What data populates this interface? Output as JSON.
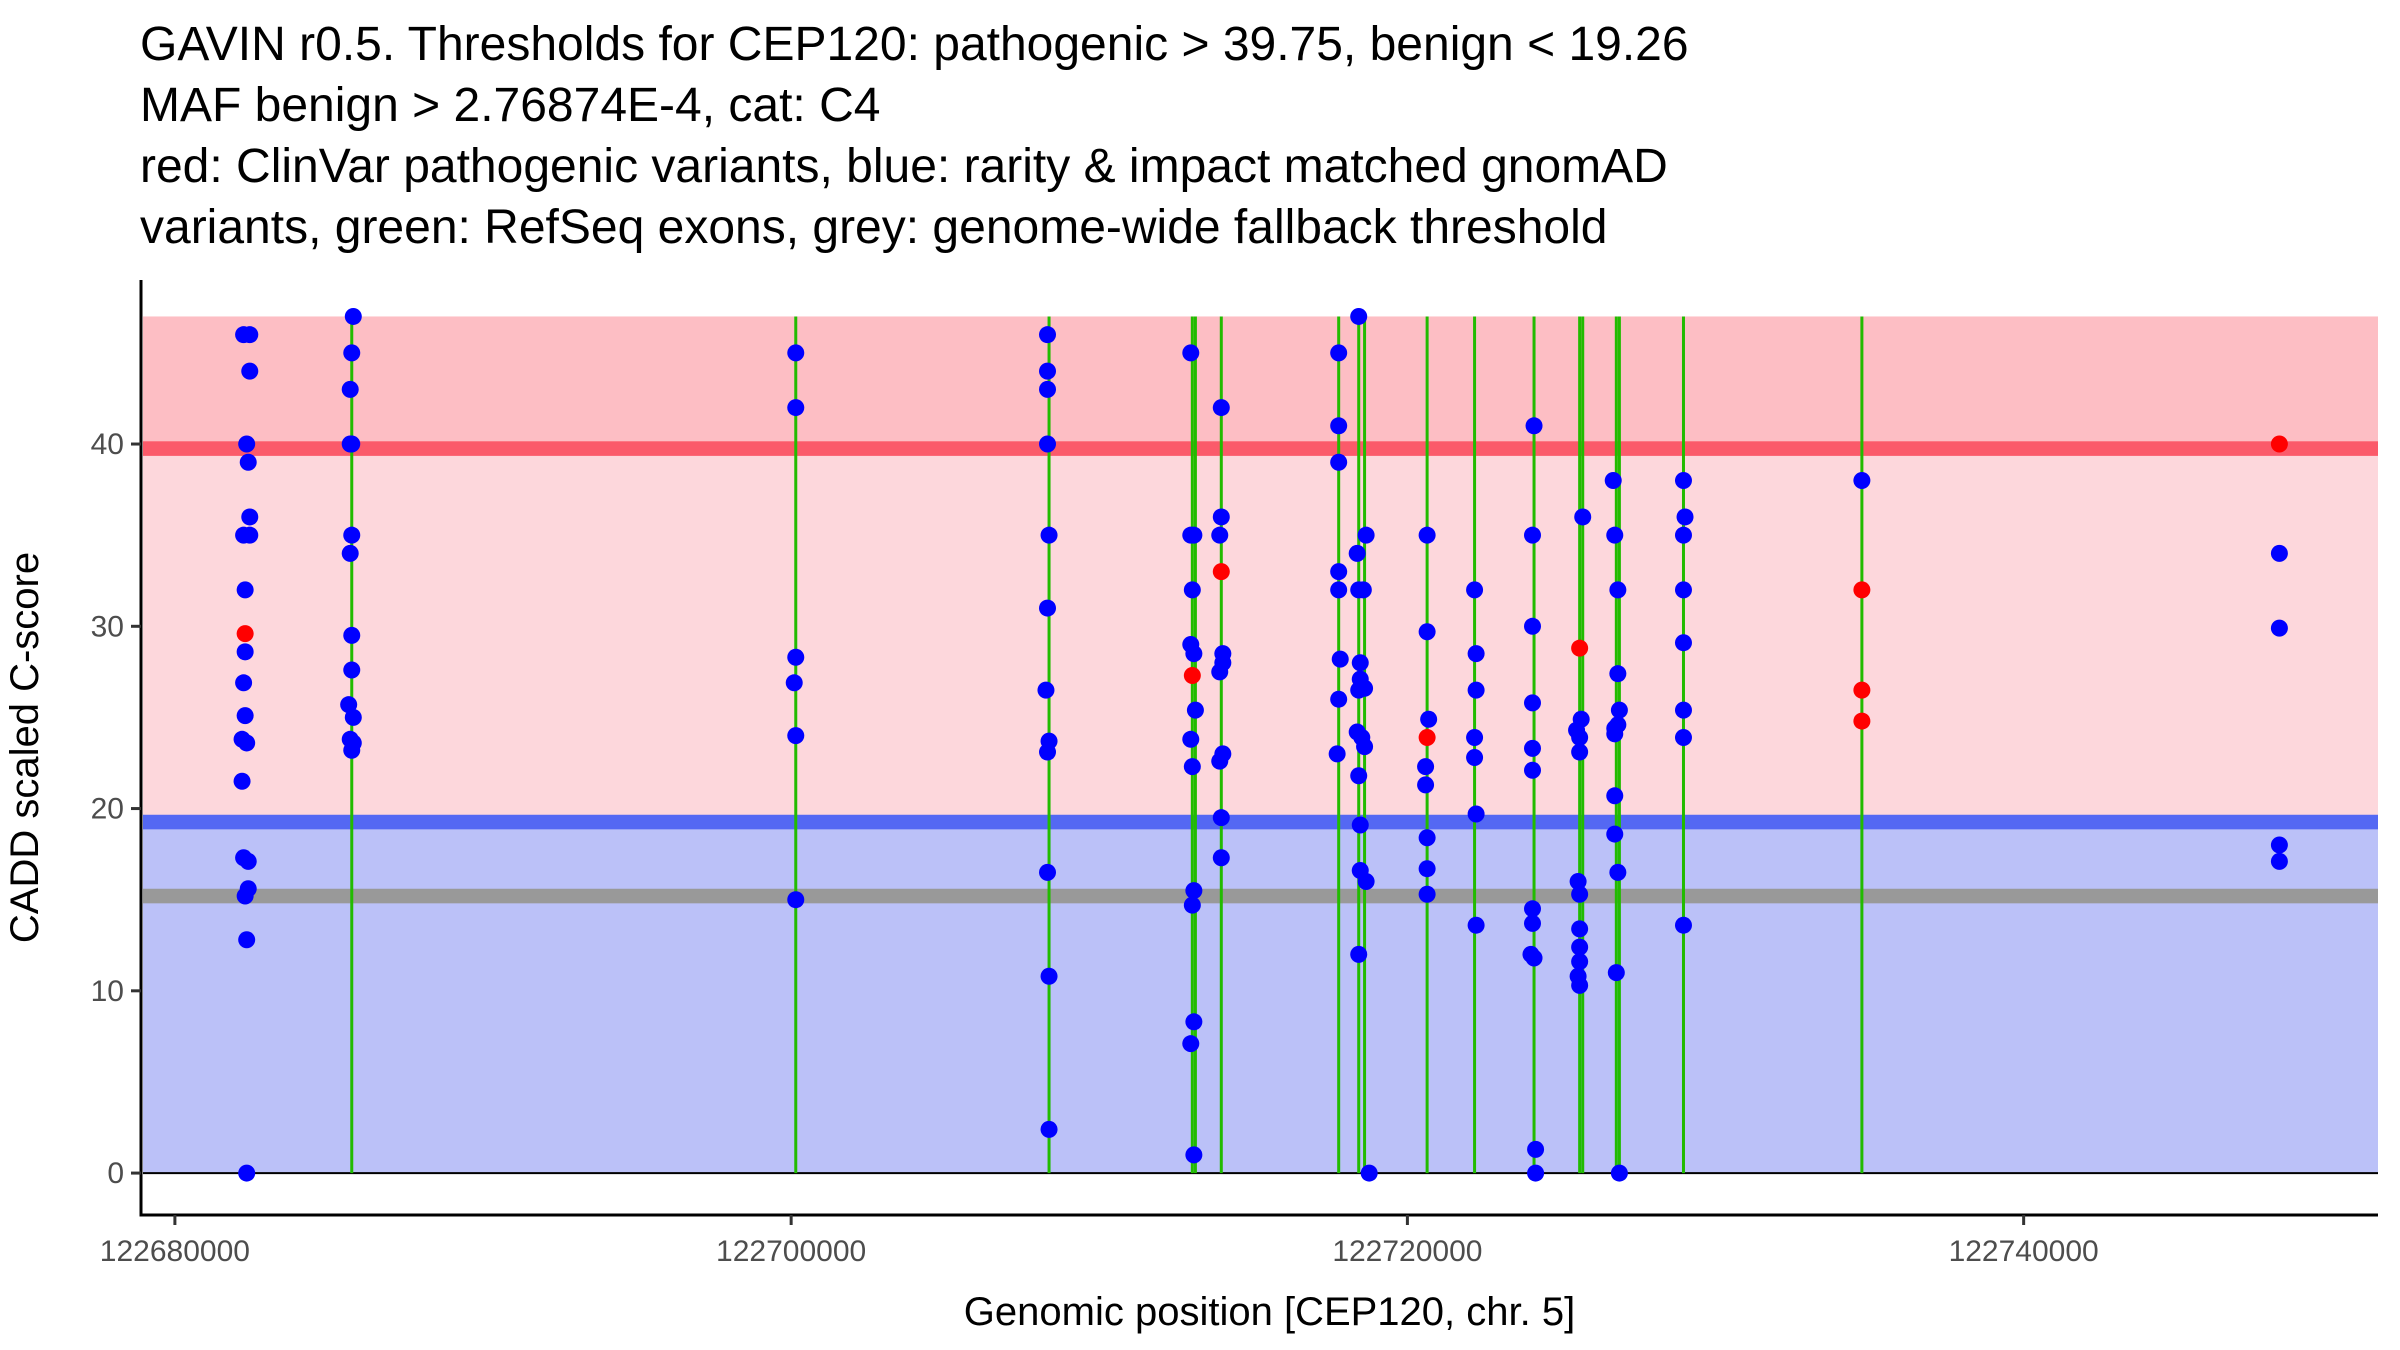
{
  "chart_data": {
    "type": "scatter",
    "title_lines": [
      "GAVIN r0.5. Thresholds for CEP120: pathogenic > 39.75, benign < 19.26",
      "MAF benign > 2.76874E-4, cat: C4",
      "red: ClinVar pathogenic variants, blue: rarity & impact matched gnomAD",
      "variants, green: RefSeq exons, grey: genome-wide fallback threshold"
    ],
    "xlabel": "Genomic position [CEP120, chr. 5]",
    "ylabel": "CADD scaled C-score",
    "xlim": [
      122678900,
      122751500
    ],
    "ylim": [
      -2.3,
      49
    ],
    "x_ticks": [
      122680000,
      122700000,
      122720000,
      122740000
    ],
    "x_tick_labels": [
      "122680000",
      "122700000",
      "122720000",
      "122740000"
    ],
    "y_ticks": [
      0,
      10,
      20,
      30,
      40
    ],
    "y_tick_labels": [
      "0",
      "10",
      "20",
      "30",
      "40"
    ],
    "grid": false,
    "colors": {
      "pathogenic_region": "#fdbec4",
      "pathogenic_line": "#fb5a6a",
      "vus_region": "#fdd7dc",
      "benign_line": "#5468f3",
      "benign_region": "#bbc1f8",
      "fallback_line": "#999999",
      "exon": "#22bb00",
      "clinvar": "#ff0000",
      "gnomad": "#0000ff"
    },
    "regions": {
      "pathogenic_top": 47,
      "pathogenic_threshold": 39.75,
      "benign_threshold": 19.26,
      "fallback_threshold": 15.2,
      "bottom": 0
    },
    "exons": [
      122685740,
      122700150,
      122708370,
      122713020,
      122713120,
      122713960,
      122717770,
      122718420,
      122718610,
      122720640,
      122722180,
      122724110,
      122725590,
      122725690,
      122726780,
      122726880,
      122728960,
      122734750
    ],
    "series": [
      {
        "name": "ClinVar pathogenic variants",
        "color": "#ff0000",
        "points": [
          [
            122682280,
            29.6
          ],
          [
            122713020,
            27.3
          ],
          [
            122713960,
            33.0
          ],
          [
            122720640,
            23.9
          ],
          [
            122725590,
            28.8
          ],
          [
            122734750,
            32.0
          ],
          [
            122734750,
            26.5
          ],
          [
            122734750,
            24.8
          ],
          [
            122748300,
            40.0
          ]
        ]
      },
      {
        "name": "rarity & impact matched gnomAD variants",
        "color": "#0000ff",
        "points": [
          [
            122682230,
            46.0
          ],
          [
            122682430,
            46.0
          ],
          [
            122682430,
            44.0
          ],
          [
            122682330,
            40.0
          ],
          [
            122682380,
            39.0
          ],
          [
            122682430,
            36.0
          ],
          [
            122682230,
            35.0
          ],
          [
            122682430,
            35.0
          ],
          [
            122682280,
            32.0
          ],
          [
            122682280,
            28.6
          ],
          [
            122682230,
            26.9
          ],
          [
            122682280,
            25.1
          ],
          [
            122682180,
            23.8
          ],
          [
            122682330,
            23.6
          ],
          [
            122682180,
            21.5
          ],
          [
            122682230,
            17.3
          ],
          [
            122682380,
            17.1
          ],
          [
            122682380,
            15.6
          ],
          [
            122682280,
            15.2
          ],
          [
            122682330,
            12.8
          ],
          [
            122682330,
            0.0
          ],
          [
            122685790,
            47.0
          ],
          [
            122685740,
            45.0
          ],
          [
            122685690,
            43.0
          ],
          [
            122685690,
            40.0
          ],
          [
            122685740,
            40.0
          ],
          [
            122685740,
            35.0
          ],
          [
            122685690,
            34.0
          ],
          [
            122685740,
            29.5
          ],
          [
            122685740,
            27.6
          ],
          [
            122685640,
            25.7
          ],
          [
            122685790,
            25.0
          ],
          [
            122685690,
            23.8
          ],
          [
            122685790,
            23.6
          ],
          [
            122685740,
            23.2
          ],
          [
            122700150,
            45.0
          ],
          [
            122700150,
            42.0
          ],
          [
            122700150,
            28.3
          ],
          [
            122700100,
            26.9
          ],
          [
            122700150,
            24.0
          ],
          [
            122700150,
            15.0
          ],
          [
            122708320,
            46.0
          ],
          [
            122708320,
            44.0
          ],
          [
            122708320,
            43.0
          ],
          [
            122708320,
            40.0
          ],
          [
            122708370,
            35.0
          ],
          [
            122708320,
            31.0
          ],
          [
            122708270,
            26.5
          ],
          [
            122708370,
            23.7
          ],
          [
            122708320,
            23.1
          ],
          [
            122708320,
            16.5
          ],
          [
            122708370,
            10.8
          ],
          [
            122708370,
            2.4
          ],
          [
            122712970,
            45.0
          ],
          [
            122712970,
            35.0
          ],
          [
            122713070,
            35.0
          ],
          [
            122713020,
            32.0
          ],
          [
            122712970,
            29.0
          ],
          [
            122713070,
            28.5
          ],
          [
            122713120,
            25.4
          ],
          [
            122712970,
            23.8
          ],
          [
            122713020,
            22.3
          ],
          [
            122713070,
            15.5
          ],
          [
            122713020,
            14.7
          ],
          [
            122713070,
            8.3
          ],
          [
            122712970,
            7.1
          ],
          [
            122713070,
            1.0
          ],
          [
            122713960,
            42.0
          ],
          [
            122713960,
            36.0
          ],
          [
            122713910,
            35.0
          ],
          [
            122714010,
            28.5
          ],
          [
            122714010,
            28.0
          ],
          [
            122713910,
            27.5
          ],
          [
            122714010,
            23.0
          ],
          [
            122713910,
            22.6
          ],
          [
            122713960,
            19.5
          ],
          [
            122713960,
            17.3
          ],
          [
            122717770,
            45.0
          ],
          [
            122717770,
            41.0
          ],
          [
            122717770,
            39.0
          ],
          [
            122717770,
            33.0
          ],
          [
            122717770,
            32.0
          ],
          [
            122717820,
            28.2
          ],
          [
            122717770,
            26.0
          ],
          [
            122717720,
            23.0
          ],
          [
            122718420,
            47.0
          ],
          [
            122718370,
            34.0
          ],
          [
            122718420,
            32.0
          ],
          [
            122718570,
            32.0
          ],
          [
            122718660,
            35.0
          ],
          [
            122718470,
            28.0
          ],
          [
            122718470,
            27.1
          ],
          [
            122718420,
            26.5
          ],
          [
            122718610,
            26.6
          ],
          [
            122718370,
            24.2
          ],
          [
            122718520,
            23.9
          ],
          [
            122718610,
            23.4
          ],
          [
            122718420,
            21.8
          ],
          [
            122718470,
            19.1
          ],
          [
            122718470,
            16.6
          ],
          [
            122718660,
            16.0
          ],
          [
            122718420,
            12.0
          ],
          [
            122718760,
            0.0
          ],
          [
            122720640,
            35.0
          ],
          [
            122720640,
            29.7
          ],
          [
            122720690,
            24.9
          ],
          [
            122720590,
            22.3
          ],
          [
            122720590,
            21.3
          ],
          [
            122720640,
            18.4
          ],
          [
            122720640,
            16.7
          ],
          [
            122720640,
            15.3
          ],
          [
            122722180,
            32.0
          ],
          [
            122722230,
            28.5
          ],
          [
            122722230,
            26.5
          ],
          [
            122722180,
            23.9
          ],
          [
            122722180,
            22.8
          ],
          [
            122722230,
            19.7
          ],
          [
            122722230,
            13.6
          ],
          [
            122724110,
            41.0
          ],
          [
            122724060,
            35.0
          ],
          [
            122724060,
            30.0
          ],
          [
            122724060,
            25.8
          ],
          [
            122724060,
            23.3
          ],
          [
            122724060,
            22.1
          ],
          [
            122724060,
            14.5
          ],
          [
            122724060,
            13.7
          ],
          [
            122724010,
            12.0
          ],
          [
            122724110,
            11.8
          ],
          [
            122724160,
            1.3
          ],
          [
            122724160,
            0.0
          ],
          [
            122725690,
            36.0
          ],
          [
            122725640,
            24.9
          ],
          [
            122725490,
            24.3
          ],
          [
            122725590,
            23.9
          ],
          [
            122725590,
            23.1
          ],
          [
            122725540,
            16.0
          ],
          [
            122725590,
            15.3
          ],
          [
            122725590,
            13.4
          ],
          [
            122725590,
            12.4
          ],
          [
            122725590,
            11.6
          ],
          [
            122725540,
            10.8
          ],
          [
            122725590,
            10.3
          ],
          [
            122726680,
            38.0
          ],
          [
            122726730,
            35.0
          ],
          [
            122726830,
            32.0
          ],
          [
            122726830,
            27.4
          ],
          [
            122726880,
            25.4
          ],
          [
            122726730,
            24.4
          ],
          [
            122726730,
            24.1
          ],
          [
            122726830,
            24.6
          ],
          [
            122726730,
            20.7
          ],
          [
            122726730,
            18.6
          ],
          [
            122726830,
            16.5
          ],
          [
            122726780,
            11.0
          ],
          [
            122726880,
            0.0
          ],
          [
            122728960,
            38.0
          ],
          [
            122729010,
            36.0
          ],
          [
            122728960,
            35.0
          ],
          [
            122728960,
            32.0
          ],
          [
            122728960,
            29.1
          ],
          [
            122728960,
            25.4
          ],
          [
            122728960,
            23.9
          ],
          [
            122728960,
            13.6
          ],
          [
            122734750,
            38.0
          ],
          [
            122748300,
            34.0
          ],
          [
            122748300,
            29.9
          ],
          [
            122748300,
            18.0
          ],
          [
            122748300,
            17.1
          ]
        ]
      }
    ]
  }
}
